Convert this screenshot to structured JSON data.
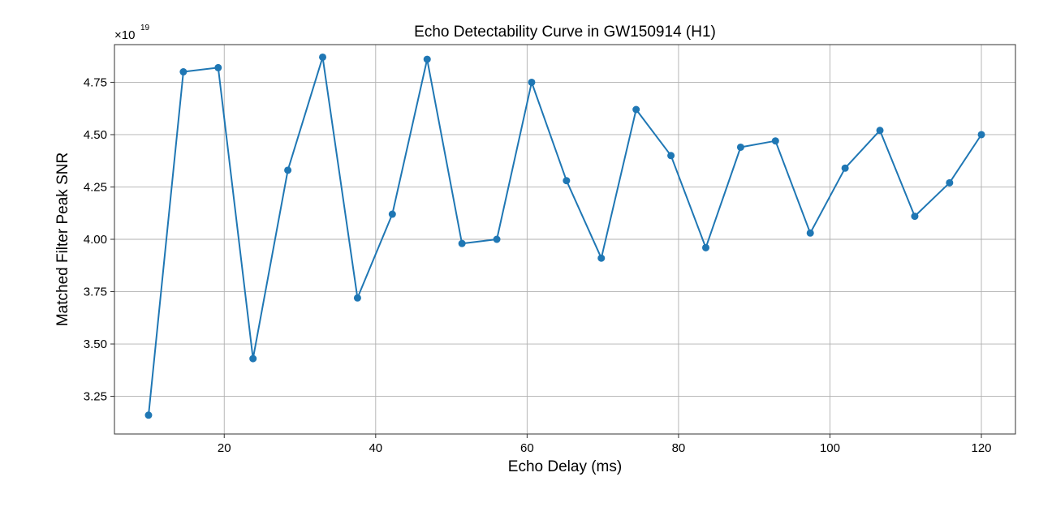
{
  "chart_data": {
    "type": "line",
    "title": "Echo Detectability Curve in GW150914 (H1)",
    "xlabel": "Echo Delay (ms)",
    "ylabel": "Matched Filter Peak SNR",
    "y_offset_base": "×10",
    "y_offset_exponent": "19",
    "xlim": [
      5.5,
      124.5
    ],
    "ylim": [
      3.07,
      4.93
    ],
    "x_ticks": [
      20,
      40,
      60,
      80,
      100,
      120
    ],
    "x_tick_labels": [
      "20",
      "40",
      "60",
      "80",
      "100",
      "120"
    ],
    "y_ticks": [
      3.25,
      3.5,
      3.75,
      4.0,
      4.25,
      4.5,
      4.75
    ],
    "y_tick_labels": [
      "3.25",
      "3.50",
      "3.75",
      "4.00",
      "4.25",
      "4.50",
      "4.75"
    ],
    "grid": true,
    "marker": "circle",
    "color": "#1f77b4",
    "series": [
      {
        "x": [
          10.0,
          14.6,
          19.2,
          23.8,
          28.4,
          33.0,
          37.6,
          42.2,
          46.8,
          51.4,
          56.0,
          60.6,
          65.2,
          69.8,
          74.4,
          79.0,
          83.6,
          88.2,
          92.8,
          97.4,
          102.0,
          106.6,
          111.2,
          115.8,
          120.0
        ],
        "y": [
          3.16,
          4.8,
          4.82,
          3.43,
          4.33,
          4.87,
          3.72,
          4.12,
          4.86,
          3.98,
          4.0,
          4.75,
          4.28,
          3.91,
          4.62,
          4.4,
          3.96,
          4.44,
          4.47,
          4.03,
          4.34,
          4.52,
          4.11,
          4.27,
          4.5
        ]
      }
    ]
  }
}
